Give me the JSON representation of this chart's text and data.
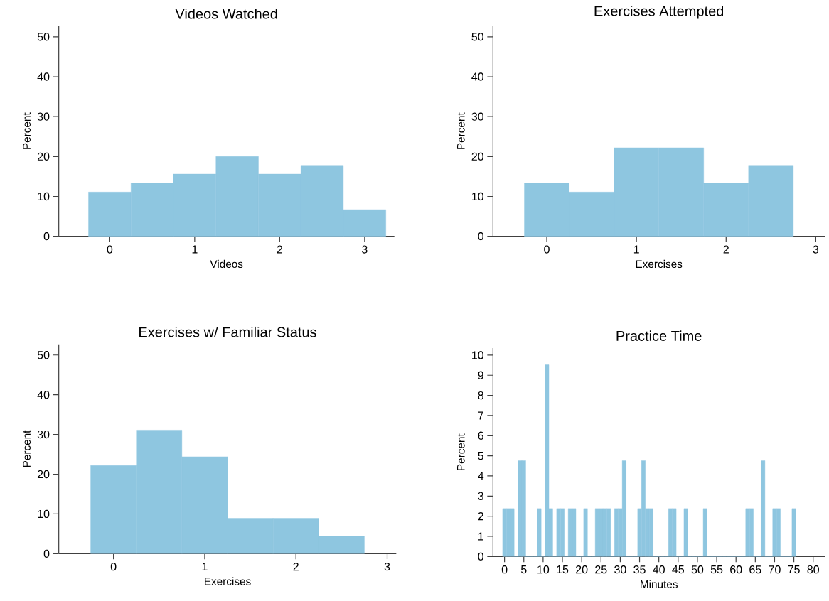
{
  "chart_data": [
    {
      "type": "histogram",
      "title": "Videos Watched",
      "xlabel": "Videos",
      "ylabel": "Percent",
      "color": "#8ec6e0",
      "bins": [
        -0.25,
        0.25,
        0.75,
        1.25,
        1.75,
        2.25,
        2.75,
        3.25
      ],
      "values": [
        11.1,
        13.3,
        15.6,
        20.0,
        15.6,
        17.8,
        6.7
      ],
      "xlim": [
        -0.6,
        3.35
      ],
      "ylim": [
        0,
        52.7
      ],
      "xticks": [
        0,
        1,
        2,
        3
      ],
      "yticks": [
        0,
        10,
        20,
        30,
        40,
        50
      ]
    },
    {
      "type": "histogram",
      "title": "Exercises Attempted",
      "xlabel": "Exercises",
      "ylabel": "Percent",
      "color": "#8ec6e0",
      "bins": [
        -0.25,
        0.25,
        0.75,
        1.25,
        1.75,
        2.25,
        2.75
      ],
      "values": [
        13.3,
        11.1,
        22.2,
        22.2,
        13.3,
        17.8
      ],
      "xlim": [
        -0.6,
        3.1
      ],
      "ylim": [
        0,
        52.7
      ],
      "xticks": [
        0,
        1,
        2,
        3
      ],
      "yticks": [
        0,
        10,
        20,
        30,
        40,
        50
      ]
    },
    {
      "type": "histogram",
      "title": "Exercises w/ Familiar Status",
      "xlabel": "Exercises",
      "ylabel": "Percent",
      "color": "#8ec6e0",
      "bins": [
        -0.25,
        0.25,
        0.75,
        1.25,
        1.75,
        2.25,
        2.75
      ],
      "values": [
        22.2,
        31.1,
        24.4,
        8.9,
        8.9,
        4.4
      ],
      "xlim": [
        -0.6,
        3.1
      ],
      "ylim": [
        0,
        52.7
      ],
      "xticks": [
        0,
        1,
        2,
        3
      ],
      "yticks": [
        0,
        10,
        20,
        30,
        40,
        50
      ]
    },
    {
      "type": "histogram",
      "title": "Practice Time",
      "xlabel": "Minutes",
      "ylabel": "Percent",
      "color": "#8ec6e0",
      "bins": [
        -0.5,
        0.5,
        1.5,
        2.5,
        3.5,
        4.5,
        5.5,
        6.5,
        7.5,
        8.5,
        9.5,
        10.5,
        11.5,
        12.5,
        13.5,
        14.5,
        15.5,
        16.5,
        17.5,
        18.5,
        19.5,
        20.5,
        21.5,
        22.5,
        23.5,
        24.5,
        25.5,
        26.5,
        27.5,
        28.5,
        29.5,
        30.5,
        31.5,
        32.5,
        33.5,
        34.5,
        35.5,
        36.5,
        37.5,
        38.5,
        39.5,
        40.5,
        41.5,
        42.5,
        43.5,
        44.5,
        45.5,
        46.5,
        47.5,
        48.5,
        49.5,
        50.5,
        51.5,
        52.5,
        53.5,
        54.5,
        55.5,
        56.5,
        57.5,
        58.5,
        59.5,
        60.5,
        61.5,
        62.5,
        63.5,
        64.5,
        65.5,
        66.5,
        67.5,
        68.5,
        69.5,
        70.5,
        71.5,
        72.5,
        73.5,
        74.5,
        75.5
      ],
      "values": [
        2.38,
        2.38,
        2.38,
        0,
        4.76,
        4.76,
        0,
        0,
        0,
        2.38,
        0,
        9.52,
        2.38,
        0,
        2.38,
        2.38,
        0,
        2.38,
        2.38,
        0,
        0,
        2.38,
        0,
        0,
        2.38,
        2.38,
        2.38,
        2.38,
        0,
        2.38,
        2.38,
        4.76,
        0,
        0,
        0,
        2.38,
        4.76,
        2.38,
        2.38,
        0,
        0,
        0,
        0,
        2.38,
        2.38,
        0,
        0,
        2.38,
        0,
        0,
        0,
        0,
        2.38,
        0,
        0,
        0,
        0,
        0,
        0,
        0,
        0,
        0,
        0,
        2.38,
        2.38,
        0,
        0,
        4.76,
        0,
        0,
        2.38,
        2.38,
        0,
        0,
        0,
        2.38
      ],
      "xlim": [
        -3,
        83
      ],
      "ylim": [
        0,
        10.35
      ],
      "xticks": [
        0,
        5,
        10,
        15,
        20,
        25,
        30,
        35,
        40,
        45,
        50,
        55,
        60,
        65,
        70,
        75,
        80
      ],
      "yticks": [
        0,
        1,
        2,
        3,
        4,
        5,
        6,
        7,
        8,
        9,
        10
      ]
    }
  ]
}
